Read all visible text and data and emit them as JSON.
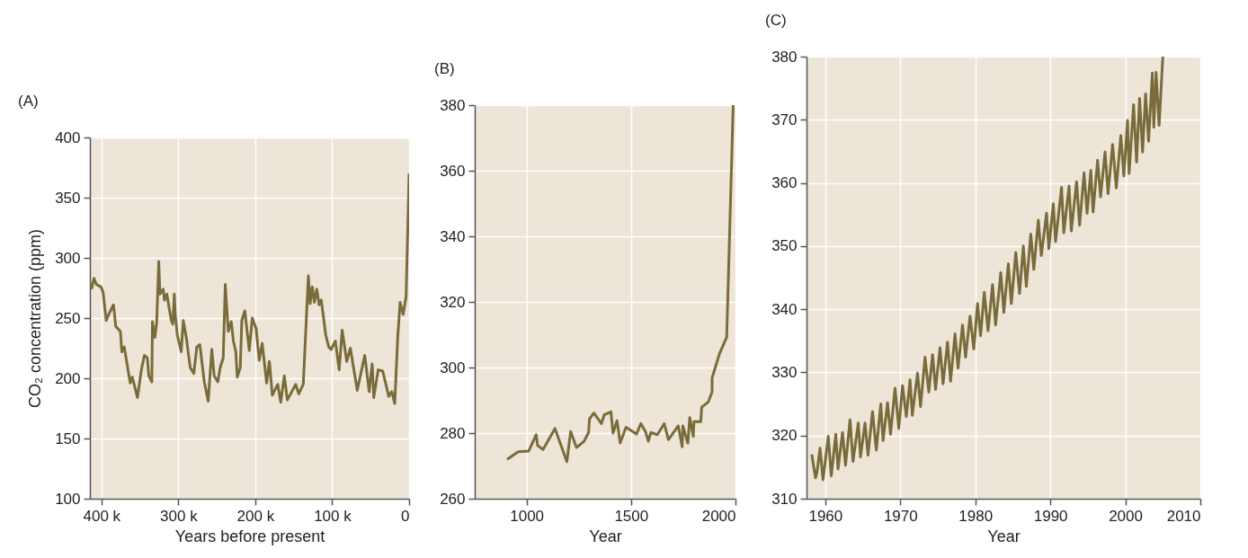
{
  "chart_data": [
    {
      "type": "line",
      "title": "(A)",
      "xlabel": "Years before present",
      "ylabel": "CO₂ concentration (ppm)",
      "grid": true,
      "xlim": [
        415000,
        0
      ],
      "xticks": [
        {
          "value": 400000,
          "label": "400 k"
        },
        {
          "value": 300000,
          "label": "300 k"
        },
        {
          "value": 200000,
          "label": "200 k"
        },
        {
          "value": 100000,
          "label": "100 k"
        },
        0
      ],
      "ylim": [
        100,
        400
      ],
      "yticks": [
        100,
        150,
        200,
        250,
        300,
        350,
        400
      ],
      "x": [
        414800,
        412500,
        409700,
        406600,
        400800,
        398000,
        393800,
        389900,
        384400,
        381300,
        375400,
        373500,
        370400,
        362600,
        359900,
        353200,
        348100,
        344200,
        340400,
        338400,
        334500,
        333700,
        330600,
        328200,
        325500,
        324000,
        319700,
        318100,
        315000,
        309200,
        307200,
        305300,
        304100,
        301400,
        296300,
        293600,
        289700,
        284600,
        279900,
        276000,
        272100,
        266300,
        261200,
        256500,
        253400,
        248700,
        245600,
        241700,
        239000,
        235100,
        231200,
        228500,
        225300,
        223400,
        219500,
        217500,
        213600,
        207800,
        203900,
        198800,
        194900,
        191000,
        185200,
        181700,
        177800,
        170800,
        166900,
        162200,
        158300,
        147400,
        143500,
        137600,
        131000,
        128700,
        125900,
        123200,
        120100,
        117000,
        114200,
        108400,
        104500,
        101400,
        95900,
        90900,
        87000,
        81100,
        76400,
        67400,
        57700,
        51900,
        48000,
        46000,
        40200,
        34300,
        26500,
        22600,
        18700,
        14800,
        11700,
        7800,
        3900,
        0
      ],
      "series": [
        {
          "color": "#7a6c3a",
          "values": [
            279,
            275,
            283,
            278,
            276,
            272,
            248,
            254,
            261,
            243,
            239,
            222,
            226,
            196,
            201,
            184,
            207,
            219,
            217,
            202,
            197,
            247,
            234,
            246,
            297,
            270,
            274,
            265,
            270,
            248,
            245,
            270,
            253,
            236,
            222,
            248,
            234,
            209,
            204,
            226,
            228,
            197,
            181,
            224,
            202,
            197,
            209,
            217,
            278,
            239,
            247,
            231,
            222,
            201,
            209,
            248,
            256,
            223,
            250,
            241,
            215,
            229,
            196,
            214,
            186,
            195,
            180,
            202,
            182,
            195,
            187,
            195,
            285,
            262,
            276,
            263,
            274,
            261,
            265,
            236,
            226,
            224,
            231,
            207,
            240,
            214,
            225,
            190,
            219,
            189,
            212,
            184,
            207,
            206,
            185,
            189,
            179,
            234,
            263,
            253,
            268,
            370
          ]
        }
      ]
    },
    {
      "type": "line",
      "title": "(B)",
      "xlabel": "Year",
      "grid": true,
      "xlim": [
        752,
        2000
      ],
      "xticks": [
        1000,
        1500,
        2000
      ],
      "ylim": [
        260,
        380
      ],
      "yticks": [
        260,
        280,
        300,
        320,
        340,
        360,
        380
      ],
      "x": [
        907,
        960,
        1010,
        1046,
        1053,
        1079,
        1136,
        1193,
        1211,
        1239,
        1275,
        1297,
        1301,
        1322,
        1358,
        1372,
        1404,
        1414,
        1433,
        1448,
        1476,
        1526,
        1547,
        1569,
        1583,
        1595,
        1626,
        1659,
        1679,
        1726,
        1745,
        1748,
        1772,
        1781,
        1798,
        1801,
        1834,
        1838,
        1870,
        1888,
        1888,
        1924,
        1958,
        1989
      ],
      "series": [
        {
          "color": "#7a6c3a",
          "values": [
            272,
            274.3,
            274.5,
            279.5,
            276.2,
            275,
            281.4,
            271.3,
            280.5,
            275.6,
            277.5,
            280.2,
            284.3,
            286.1,
            282.9,
            285.6,
            286.5,
            280,
            283.8,
            277,
            281.8,
            279.7,
            282.9,
            280.5,
            277.5,
            280.2,
            279.5,
            282.9,
            278,
            282.2,
            275.8,
            282.2,
            276.9,
            284.7,
            279,
            283.5,
            283.5,
            287.9,
            289.5,
            292.6,
            296.8,
            304.3,
            309.3,
            380
          ]
        }
      ]
    },
    {
      "type": "line",
      "title": "(C)",
      "xlabel": "Year",
      "grid": true,
      "xlim": [
        1957.5,
        2010
      ],
      "xticks": [
        1960,
        1970,
        1980,
        1990,
        2000,
        2010
      ],
      "ylim": [
        310,
        380
      ],
      "yticks": [
        310,
        320,
        330,
        340,
        350,
        360,
        370,
        380
      ],
      "x": [
        1958.2,
        1958.4,
        1958.7,
        1958.9,
        1959.3,
        1959.7,
        1960.4,
        1960.8,
        1961.4,
        1961.7,
        1962.3,
        1962.7,
        1963.3,
        1963.7,
        1964.4,
        1964.7,
        1965.3,
        1965.7,
        1966.3,
        1966.8,
        1967.4,
        1967.7,
        1968.3,
        1968.7,
        1969.3,
        1969.8,
        1970.3,
        1970.8,
        1971.3,
        1971.6,
        1972.3,
        1972.7,
        1973.3,
        1973.8,
        1974.3,
        1974.7,
        1975.3,
        1975.7,
        1976.3,
        1976.7,
        1977.3,
        1977.7,
        1978.3,
        1978.7,
        1979.3,
        1979.8,
        1980.3,
        1980.7,
        1981.2,
        1981.7,
        1982.3,
        1982.7,
        1983.4,
        1983.8,
        1984.4,
        1984.8,
        1985.4,
        1985.9,
        1986.4,
        1986.8,
        1987.4,
        1987.8,
        1988.4,
        1988.8,
        1989.5,
        1989.8,
        1990.4,
        1990.7,
        1991.5,
        1991.8,
        1992.5,
        1992.8,
        1993.5,
        1993.9,
        1994.5,
        1994.9,
        1995.4,
        1995.7,
        1996.3,
        1996.7,
        1997.3,
        1997.7,
        1998.3,
        1998.8,
        1999.4,
        1999.8,
        2000.3,
        2000.5,
        2001.1,
        2001.5,
        2001.9,
        2002.3,
        2002.7,
        2003.1,
        2003.6,
        2003.8,
        2004.1,
        2004.5,
        2005
      ],
      "series": [
        {
          "color": "#7a6c3a",
          "values": [
            317,
            315.5,
            313.3,
            314.2,
            318,
            313,
            319.9,
            313.6,
            320.2,
            314.7,
            320.5,
            315.3,
            322.5,
            315.9,
            322,
            316.6,
            322,
            316.9,
            323.8,
            317.7,
            325,
            319.2,
            325.2,
            320.2,
            327.5,
            321.1,
            327.9,
            323,
            328.8,
            323.2,
            329.9,
            324.6,
            332.4,
            326.9,
            332.8,
            327.3,
            333.9,
            328.2,
            334.8,
            328.6,
            336.1,
            330.7,
            337.5,
            332.4,
            338.9,
            333.7,
            340.9,
            335.8,
            342.7,
            336.6,
            343.9,
            337.5,
            345.8,
            339.5,
            347.2,
            340.9,
            349,
            342.5,
            350,
            343.6,
            351.9,
            346.3,
            354.1,
            348.5,
            355.2,
            349.6,
            356.7,
            350.7,
            359.3,
            352.1,
            359.5,
            352.4,
            360.2,
            353.3,
            361.6,
            355.2,
            362,
            355.4,
            363.6,
            357.8,
            364.9,
            358.3,
            366.1,
            359.2,
            367.5,
            361.1,
            369.9,
            361.5,
            372.4,
            363.3,
            373.4,
            364.9,
            374.1,
            366.6,
            377.4,
            368.8,
            377.5,
            369.1,
            380
          ]
        }
      ]
    }
  ]
}
